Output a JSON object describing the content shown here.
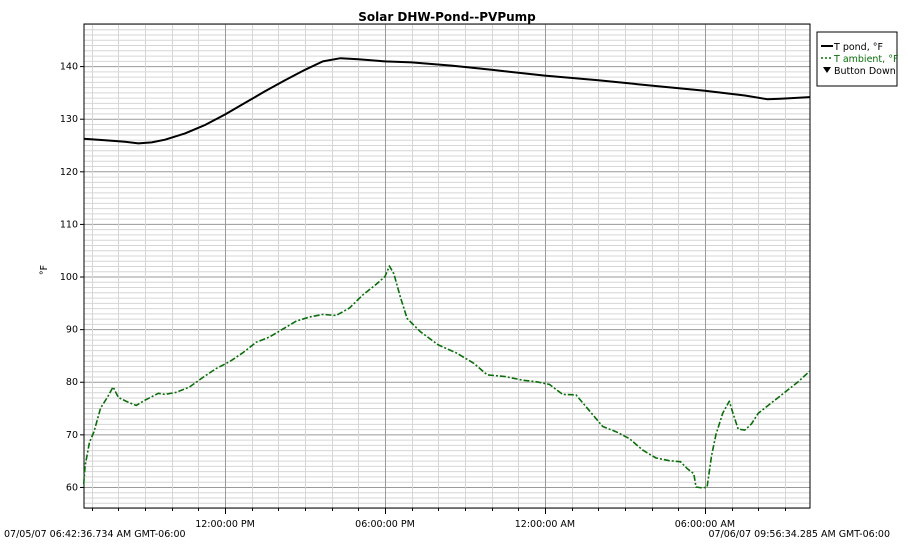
{
  "chart_data": {
    "type": "line",
    "title": "Solar DHW-Pond--PVPump",
    "ylabel": "°F",
    "xlabel": "",
    "start_label": "07/05/07 06:42:36.734 AM GMT-06:00",
    "end_label": "07/06/07 09:56:34.285 AM GMT-06:00",
    "ylim": [
      56,
      148
    ],
    "y_ticks": [
      60,
      70,
      80,
      90,
      100,
      110,
      120,
      130,
      140
    ],
    "x_start": "2007-07-05T06:42:36",
    "x_end": "2007-07-06T09:56:34",
    "x_ticks": [
      {
        "t": "2007-07-05T12:00:00",
        "label": "12:00:00 PM"
      },
      {
        "t": "2007-07-05T18:00:00",
        "label": "06:00:00 PM"
      },
      {
        "t": "2007-07-06T00:00:00",
        "label": "12:00:00 AM"
      },
      {
        "t": "2007-07-06T06:00:00",
        "label": "06:00:00 AM"
      }
    ],
    "grid": true,
    "legend_position": "top-right",
    "series": [
      {
        "name": "T pond, °F",
        "color": "#000000",
        "style": "solid",
        "points": [
          [
            "2007-07-05T06:42",
            126.2
          ],
          [
            "2007-07-05T07:30",
            125.9
          ],
          [
            "2007-07-05T08:15",
            125.6
          ],
          [
            "2007-07-05T08:45",
            125.3
          ],
          [
            "2007-07-05T09:15",
            125.5
          ],
          [
            "2007-07-05T09:45",
            126.0
          ],
          [
            "2007-07-05T10:30",
            127.2
          ],
          [
            "2007-07-05T11:15",
            128.8
          ],
          [
            "2007-07-05T12:00",
            130.8
          ],
          [
            "2007-07-05T12:45",
            133.0
          ],
          [
            "2007-07-05T13:30",
            135.2
          ],
          [
            "2007-07-05T14:15",
            137.3
          ],
          [
            "2007-07-05T15:00",
            139.3
          ],
          [
            "2007-07-05T15:40",
            140.9
          ],
          [
            "2007-07-05T16:20",
            141.5
          ],
          [
            "2007-07-05T17:00",
            141.3
          ],
          [
            "2007-07-05T18:00",
            140.9
          ],
          [
            "2007-07-05T19:00",
            140.7
          ],
          [
            "2007-07-05T20:30",
            140.1
          ],
          [
            "2007-07-05T22:00",
            139.3
          ],
          [
            "2007-07-06T00:00",
            138.2
          ],
          [
            "2007-07-06T02:00",
            137.3
          ],
          [
            "2007-07-06T04:00",
            136.3
          ],
          [
            "2007-07-06T06:00",
            135.3
          ],
          [
            "2007-07-06T07:30",
            134.4
          ],
          [
            "2007-07-06T08:20",
            133.7
          ],
          [
            "2007-07-06T08:50",
            133.8
          ],
          [
            "2007-07-06T09:56",
            134.1
          ]
        ]
      },
      {
        "name": "T ambient, °F",
        "color": "#0a6e0a",
        "style": "dashdot",
        "points": [
          [
            "2007-07-05T06:42",
            60.5
          ],
          [
            "2007-07-05T06:45",
            64.0
          ],
          [
            "2007-07-05T06:55",
            68.5
          ],
          [
            "2007-07-05T07:05",
            70.5
          ],
          [
            "2007-07-05T07:20",
            75.0
          ],
          [
            "2007-07-05T07:35",
            77.0
          ],
          [
            "2007-07-05T07:48",
            79.0
          ],
          [
            "2007-07-05T08:00",
            77.0
          ],
          [
            "2007-07-05T08:25",
            76.0
          ],
          [
            "2007-07-05T08:40",
            75.5
          ],
          [
            "2007-07-05T09:00",
            76.5
          ],
          [
            "2007-07-05T09:30",
            77.8
          ],
          [
            "2007-07-05T09:45",
            77.6
          ],
          [
            "2007-07-05T10:10",
            78.0
          ],
          [
            "2007-07-05T10:40",
            79.0
          ],
          [
            "2007-07-05T11:10",
            80.8
          ],
          [
            "2007-07-05T11:40",
            82.5
          ],
          [
            "2007-07-05T12:10",
            83.8
          ],
          [
            "2007-07-05T12:40",
            85.5
          ],
          [
            "2007-07-05T13:10",
            87.5
          ],
          [
            "2007-07-05T13:40",
            88.5
          ],
          [
            "2007-07-05T14:10",
            90.0
          ],
          [
            "2007-07-05T14:40",
            91.5
          ],
          [
            "2007-07-05T15:10",
            92.3
          ],
          [
            "2007-07-05T15:40",
            92.8
          ],
          [
            "2007-07-05T16:10",
            92.6
          ],
          [
            "2007-07-05T16:40",
            94.0
          ],
          [
            "2007-07-05T17:10",
            96.5
          ],
          [
            "2007-07-05T17:40",
            98.5
          ],
          [
            "2007-07-05T18:00",
            100.0
          ],
          [
            "2007-07-05T18:10",
            102.0
          ],
          [
            "2007-07-05T18:20",
            100.5
          ],
          [
            "2007-07-05T18:35",
            96.0
          ],
          [
            "2007-07-05T18:50",
            92.0
          ],
          [
            "2007-07-05T19:20",
            89.5
          ],
          [
            "2007-07-05T20:00",
            87.0
          ],
          [
            "2007-07-05T20:40",
            85.5
          ],
          [
            "2007-07-05T21:20",
            83.5
          ],
          [
            "2007-07-05T21:50",
            81.3
          ],
          [
            "2007-07-05T22:30",
            81.0
          ],
          [
            "2007-07-05T23:10",
            80.3
          ],
          [
            "2007-07-05T23:40",
            80.0
          ],
          [
            "2007-07-06T00:10",
            79.5
          ],
          [
            "2007-07-06T00:40",
            77.6
          ],
          [
            "2007-07-06T01:10",
            77.5
          ],
          [
            "2007-07-06T01:40",
            74.5
          ],
          [
            "2007-07-06T02:10",
            71.5
          ],
          [
            "2007-07-06T02:40",
            70.5
          ],
          [
            "2007-07-06T03:10",
            69.2
          ],
          [
            "2007-07-06T03:40",
            67.0
          ],
          [
            "2007-07-06T04:10",
            65.5
          ],
          [
            "2007-07-06T04:40",
            65.0
          ],
          [
            "2007-07-06T05:05",
            64.8
          ],
          [
            "2007-07-06T05:20",
            63.5
          ],
          [
            "2007-07-06T05:35",
            62.5
          ],
          [
            "2007-07-06T05:40",
            60.0
          ],
          [
            "2007-07-06T05:55",
            59.8
          ],
          [
            "2007-07-06T06:05",
            60.0
          ],
          [
            "2007-07-06T06:15",
            66.0
          ],
          [
            "2007-07-06T06:25",
            70.0
          ],
          [
            "2007-07-06T06:40",
            74.0
          ],
          [
            "2007-07-06T06:55",
            76.3
          ],
          [
            "2007-07-06T07:05",
            73.5
          ],
          [
            "2007-07-06T07:15",
            71.0
          ],
          [
            "2007-07-06T07:30",
            70.8
          ],
          [
            "2007-07-06T07:45",
            72.0
          ],
          [
            "2007-07-06T08:00",
            74.0
          ],
          [
            "2007-07-06T08:30",
            76.0
          ],
          [
            "2007-07-06T09:00",
            78.0
          ],
          [
            "2007-07-06T09:30",
            80.0
          ],
          [
            "2007-07-06T09:56",
            82.0
          ]
        ]
      },
      {
        "name": "Button Down",
        "marker": "triangle-down",
        "color": "#000000",
        "points": []
      }
    ]
  }
}
